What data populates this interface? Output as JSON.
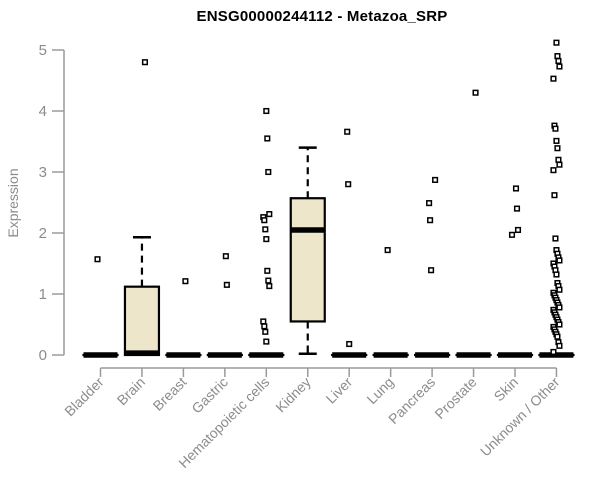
{
  "chart_data": {
    "type": "boxplot",
    "title": "ENSG00000244112 - Metazoa_SRP",
    "ylabel": "Expression",
    "xlabel": "",
    "ylim": [
      0,
      5
    ],
    "yticks": [
      0,
      1,
      2,
      3,
      4,
      5
    ],
    "grid": false,
    "legend": "none",
    "categories": [
      "Bladder",
      "Brain",
      "Breast",
      "Gastric",
      "Hematopoietic cells",
      "Kidney",
      "Liver",
      "Lung",
      "Pancreas",
      "Prostate",
      "Skin",
      "Unknown / Other"
    ],
    "boxes": [
      {
        "category": "Bladder",
        "whisker_low": 0,
        "q1": 0,
        "median": 0,
        "q3": 0,
        "whisker_high": 0,
        "outliers": [
          1.57
        ]
      },
      {
        "category": "Brain",
        "whisker_low": 0,
        "q1": 0,
        "median": 0.03,
        "q3": 1.12,
        "whisker_high": 1.93,
        "outliers": [
          4.8
        ]
      },
      {
        "category": "Breast",
        "whisker_low": 0,
        "q1": 0,
        "median": 0,
        "q3": 0,
        "whisker_high": 0,
        "outliers": [
          1.21
        ]
      },
      {
        "category": "Gastric",
        "whisker_low": 0,
        "q1": 0,
        "median": 0,
        "q3": 0,
        "whisker_high": 0,
        "outliers": [
          1.62,
          1.15
        ]
      },
      {
        "category": "Hematopoietic cells",
        "whisker_low": 0,
        "q1": 0,
        "median": 0,
        "q3": 0,
        "whisker_high": 0,
        "outliers": [
          4.0,
          3.55,
          3.0,
          2.31,
          2.26,
          2.21,
          2.06,
          1.9,
          1.38,
          1.22,
          1.13,
          0.55,
          0.47,
          0.38,
          0.22
        ]
      },
      {
        "category": "Kidney",
        "whisker_low": 0.02,
        "q1": 0.55,
        "median": 2.05,
        "q3": 2.57,
        "whisker_high": 3.4,
        "outliers": []
      },
      {
        "category": "Liver",
        "whisker_low": 0,
        "q1": 0,
        "median": 0,
        "q3": 0,
        "whisker_high": 0,
        "outliers": [
          3.66,
          2.8,
          0.18
        ]
      },
      {
        "category": "Lung",
        "whisker_low": 0,
        "q1": 0,
        "median": 0,
        "q3": 0,
        "whisker_high": 0,
        "outliers": [
          1.72
        ]
      },
      {
        "category": "Pancreas",
        "whisker_low": 0,
        "q1": 0,
        "median": 0,
        "q3": 0,
        "whisker_high": 0,
        "outliers": [
          2.87,
          2.49,
          2.21,
          1.39
        ]
      },
      {
        "category": "Prostate",
        "whisker_low": 0,
        "q1": 0,
        "median": 0,
        "q3": 0,
        "whisker_high": 0,
        "outliers": [
          4.3
        ]
      },
      {
        "category": "Skin",
        "whisker_low": 0,
        "q1": 0,
        "median": 0,
        "q3": 0,
        "whisker_high": 0,
        "outliers": [
          2.73,
          2.4,
          2.05,
          1.97
        ]
      },
      {
        "category": "Unknown / Other",
        "whisker_low": 0,
        "q1": 0,
        "median": 0,
        "q3": 0,
        "whisker_high": 0,
        "outliers": [
          5.12,
          4.9,
          4.82,
          4.73,
          4.53,
          3.76,
          3.71,
          3.51,
          3.39,
          3.2,
          3.12,
          3.03,
          2.62,
          1.91,
          1.72,
          1.66,
          1.6,
          1.55,
          1.5,
          1.45,
          1.39,
          1.32,
          1.18,
          1.13,
          1.07,
          1.02,
          0.98,
          0.94,
          0.9,
          0.86,
          0.82,
          0.78,
          0.74,
          0.7,
          0.66,
          0.62,
          0.58,
          0.54,
          0.5,
          0.46,
          0.42,
          0.38,
          0.34,
          0.3,
          0.21,
          0.15,
          0.05
        ]
      }
    ],
    "colors": {
      "box_fill": "#EDE6CA",
      "box_border": "#000000",
      "median": "#000000",
      "whisker": "#000000",
      "outlier_fill": "#FFFFFF",
      "outlier_border": "#000000",
      "axis_line": "#9a9a9a",
      "tick_label": "#8c8c8c",
      "title": "#000000"
    }
  }
}
